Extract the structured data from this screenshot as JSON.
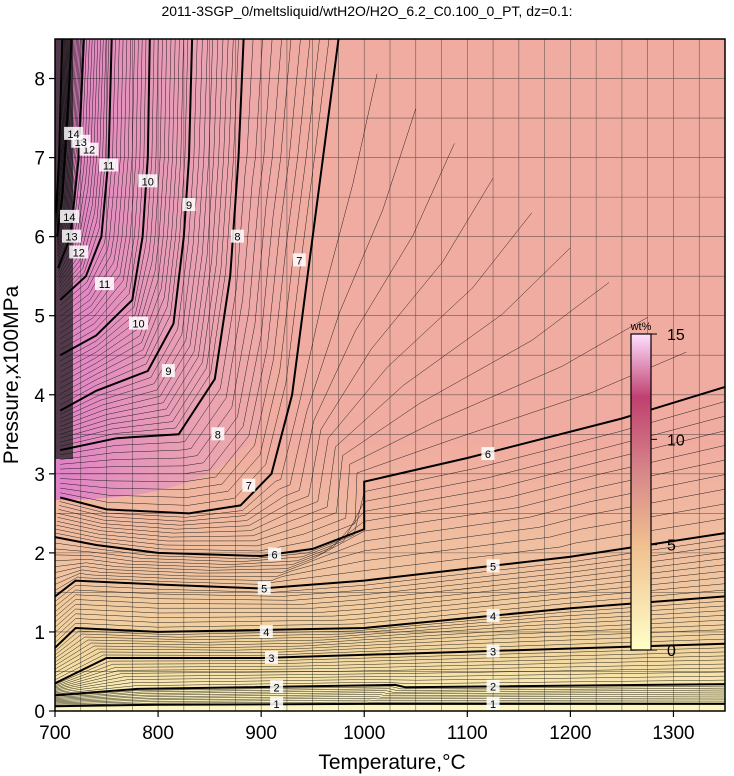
{
  "chart_data": {
    "type": "heatmap",
    "title": "2011-3SGP_0/meltsliquid/wtH2O/H2O_6.2_C0.100_0_PT, dz=0.1:",
    "xlabel": "Temperature,°C",
    "ylabel": "Pressure,x100MPa",
    "xlim": [
      700,
      1350
    ],
    "ylim": [
      0,
      8.5
    ],
    "xticks": [
      700,
      800,
      900,
      1000,
      1100,
      1200,
      1300
    ],
    "yticks": [
      0,
      1,
      2,
      3,
      4,
      5,
      6,
      7,
      8
    ],
    "grid": true,
    "colorbar": {
      "unit": "wt%",
      "range": [
        0,
        15
      ],
      "ticks": [
        0,
        5,
        10,
        15
      ],
      "colors": [
        "#ffffc8",
        "#f0c090",
        "#d88a8a",
        "#c04070",
        "#ffe0ff"
      ]
    },
    "contours": [
      {
        "level": "1",
        "points": [
          [
            700,
            0.06
          ],
          [
            800,
            0.08
          ],
          [
            1000,
            0.09
          ],
          [
            1350,
            0.09
          ]
        ]
      },
      {
        "level": "2",
        "points": [
          [
            700,
            0.2
          ],
          [
            780,
            0.28
          ],
          [
            1030,
            0.33
          ],
          [
            1040,
            0.3
          ],
          [
            1350,
            0.34
          ]
        ]
      },
      {
        "level": "3",
        "points": [
          [
            700,
            0.35
          ],
          [
            750,
            0.67
          ],
          [
            900,
            0.67
          ],
          [
            1100,
            0.75
          ],
          [
            1350,
            0.85
          ]
        ]
      },
      {
        "level": "4",
        "points": [
          [
            700,
            0.8
          ],
          [
            720,
            1.05
          ],
          [
            800,
            1.0
          ],
          [
            1000,
            1.05
          ],
          [
            1200,
            1.3
          ],
          [
            1350,
            1.45
          ]
        ]
      },
      {
        "level": "5",
        "points": [
          [
            700,
            1.45
          ],
          [
            720,
            1.65
          ],
          [
            800,
            1.6
          ],
          [
            900,
            1.55
          ],
          [
            1000,
            1.65
          ],
          [
            1200,
            1.95
          ],
          [
            1350,
            2.25
          ]
        ]
      },
      {
        "level": "6",
        "points": [
          [
            700,
            2.2
          ],
          [
            740,
            2.1
          ],
          [
            800,
            2.0
          ],
          [
            900,
            1.96
          ],
          [
            950,
            2.05
          ],
          [
            1000,
            2.3
          ],
          [
            1000,
            2.9
          ],
          [
            1100,
            3.2
          ],
          [
            1250,
            3.7
          ],
          [
            1350,
            4.1
          ]
        ]
      },
      {
        "level": "7",
        "points": [
          [
            705,
            2.7
          ],
          [
            750,
            2.55
          ],
          [
            830,
            2.5
          ],
          [
            880,
            2.6
          ],
          [
            910,
            3.0
          ],
          [
            930,
            4.0
          ],
          [
            945,
            5.5
          ],
          [
            960,
            7.0
          ],
          [
            975,
            8.5
          ]
        ]
      },
      {
        "level": "8",
        "points": [
          [
            705,
            3.3
          ],
          [
            760,
            3.45
          ],
          [
            820,
            3.5
          ],
          [
            855,
            4.2
          ],
          [
            870,
            5.5
          ],
          [
            878,
            7.0
          ],
          [
            883,
            8.5
          ]
        ]
      },
      {
        "level": "9",
        "points": [
          [
            705,
            3.8
          ],
          [
            740,
            4.05
          ],
          [
            790,
            4.3
          ],
          [
            815,
            4.9
          ],
          [
            825,
            6.0
          ],
          [
            830,
            7.0
          ],
          [
            833,
            8.5
          ]
        ]
      },
      {
        "level": "10",
        "points": [
          [
            705,
            4.5
          ],
          [
            740,
            4.75
          ],
          [
            775,
            5.2
          ],
          [
            785,
            6.0
          ],
          [
            790,
            7.0
          ],
          [
            792,
            8.5
          ]
        ]
      },
      {
        "level": "11",
        "points": [
          [
            705,
            5.2
          ],
          [
            730,
            5.5
          ],
          [
            745,
            6.0
          ],
          [
            752,
            7.0
          ],
          [
            755,
            8.5
          ]
        ]
      },
      {
        "level": "12",
        "points": [
          [
            703,
            5.6
          ],
          [
            715,
            6.0
          ],
          [
            723,
            7.0
          ],
          [
            728,
            8.5
          ]
        ]
      },
      {
        "level": "13",
        "points": [
          [
            702,
            6.0
          ],
          [
            707,
            6.5
          ],
          [
            712,
            7.5
          ],
          [
            716,
            8.5
          ]
        ]
      },
      {
        "level": "14",
        "points": [
          [
            701,
            6.3
          ],
          [
            704,
            7.0
          ],
          [
            707,
            8.5
          ]
        ]
      }
    ],
    "contour_labels": [
      {
        "text": "1",
        "x": 915,
        "y": 0.09
      },
      {
        "text": "1",
        "x": 1125,
        "y": 0.09
      },
      {
        "text": "2",
        "x": 915,
        "y": 0.3
      },
      {
        "text": "2",
        "x": 1125,
        "y": 0.31
      },
      {
        "text": "3",
        "x": 910,
        "y": 0.67
      },
      {
        "text": "3",
        "x": 1125,
        "y": 0.75
      },
      {
        "text": "4",
        "x": 905,
        "y": 1.0
      },
      {
        "text": "4",
        "x": 1125,
        "y": 1.2
      },
      {
        "text": "5",
        "x": 903,
        "y": 1.55
      },
      {
        "text": "5",
        "x": 1125,
        "y": 1.83
      },
      {
        "text": "6",
        "x": 913,
        "y": 1.98
      },
      {
        "text": "6",
        "x": 1120,
        "y": 3.25
      },
      {
        "text": "7",
        "x": 888,
        "y": 2.85
      },
      {
        "text": "7",
        "x": 937,
        "y": 5.7
      },
      {
        "text": "8",
        "x": 858,
        "y": 3.5
      },
      {
        "text": "8",
        "x": 877,
        "y": 6.0
      },
      {
        "text": "9",
        "x": 810,
        "y": 4.3
      },
      {
        "text": "9",
        "x": 830,
        "y": 6.4
      },
      {
        "text": "10",
        "x": 781,
        "y": 4.9
      },
      {
        "text": "10",
        "x": 790,
        "y": 6.7
      },
      {
        "text": "11",
        "x": 748,
        "y": 5.4
      },
      {
        "text": "11",
        "x": 752,
        "y": 6.9
      },
      {
        "text": "12",
        "x": 723,
        "y": 5.8
      },
      {
        "text": "12",
        "x": 733,
        "y": 7.1
      },
      {
        "text": "13",
        "x": 716,
        "y": 6.0
      },
      {
        "text": "13",
        "x": 725,
        "y": 7.2
      },
      {
        "text": "14",
        "x": 714,
        "y": 6.25
      },
      {
        "text": "14",
        "x": 718,
        "y": 7.3
      }
    ]
  }
}
